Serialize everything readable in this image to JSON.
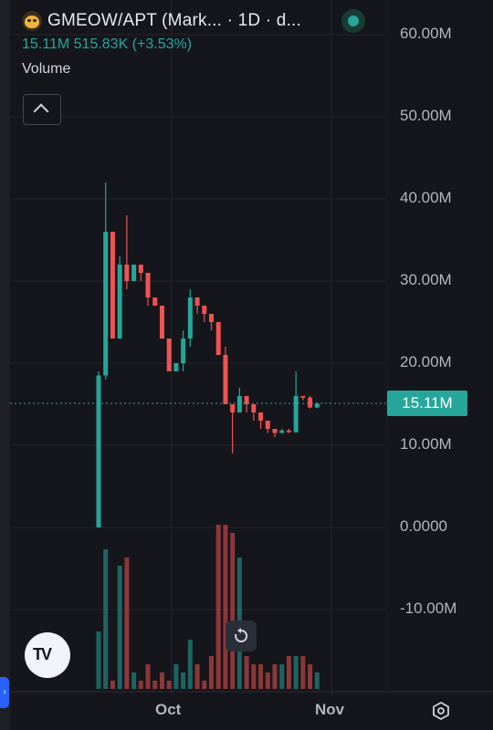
{
  "legend": {
    "symbol": "GMEOW/APT (Mark... · 1D · d...",
    "price": "15.11M",
    "volume": "515.83K",
    "change": "(+3.53%)",
    "indicator": "Volume"
  },
  "price_axis": [
    "60.00M",
    "50.00M",
    "40.00M",
    "30.00M",
    "20.00M",
    "10.00M",
    "0.0000",
    "-10.00M"
  ],
  "last_price_label": "15.11M",
  "time_axis": [
    "Oct",
    "Nov"
  ],
  "colors": {
    "up": "#26a69a",
    "down": "#ef5350",
    "background": "#15161c"
  },
  "chart_data": {
    "type": "candlestick",
    "interval": "1D",
    "ylim": [
      -20,
      60
    ],
    "unit": "M",
    "candles": [
      {
        "o": 0,
        "h": 19,
        "l": 0,
        "c": 18.5
      },
      {
        "o": 18.5,
        "h": 42,
        "l": 18,
        "c": 36
      },
      {
        "o": 36,
        "h": 36,
        "l": 23,
        "c": 23
      },
      {
        "o": 23,
        "h": 33,
        "l": 23,
        "c": 32
      },
      {
        "o": 32,
        "h": 38,
        "l": 29,
        "c": 30
      },
      {
        "o": 30,
        "h": 32,
        "l": 30,
        "c": 32
      },
      {
        "o": 32,
        "h": 32,
        "l": 30,
        "c": 31
      },
      {
        "o": 31,
        "h": 31,
        "l": 27,
        "c": 28
      },
      {
        "o": 28,
        "h": 28,
        "l": 27,
        "c": 27
      },
      {
        "o": 27,
        "h": 27,
        "l": 23,
        "c": 23
      },
      {
        "o": 23,
        "h": 23,
        "l": 19,
        "c": 19
      },
      {
        "o": 19,
        "h": 20,
        "l": 19,
        "c": 20
      },
      {
        "o": 20,
        "h": 24,
        "l": 19,
        "c": 23
      },
      {
        "o": 23,
        "h": 29,
        "l": 22,
        "c": 28
      },
      {
        "o": 28,
        "h": 28,
        "l": 26,
        "c": 27
      },
      {
        "o": 27,
        "h": 27,
        "l": 25,
        "c": 26
      },
      {
        "o": 26,
        "h": 26,
        "l": 24,
        "c": 25
      },
      {
        "o": 25,
        "h": 25,
        "l": 21,
        "c": 21
      },
      {
        "o": 21,
        "h": 22,
        "l": 15,
        "c": 15
      },
      {
        "o": 15,
        "h": 15,
        "l": 9,
        "c": 14
      },
      {
        "o": 14,
        "h": 17,
        "l": 14,
        "c": 16
      },
      {
        "o": 16,
        "h": 16,
        "l": 14,
        "c": 15
      },
      {
        "o": 15,
        "h": 15,
        "l": 13,
        "c": 14
      },
      {
        "o": 14,
        "h": 14,
        "l": 12,
        "c": 13
      },
      {
        "o": 13,
        "h": 13,
        "l": 11.5,
        "c": 12
      },
      {
        "o": 12,
        "h": 12,
        "l": 11,
        "c": 11.5
      },
      {
        "o": 11.5,
        "h": 12,
        "l": 11.5,
        "c": 11.8
      },
      {
        "o": 11.8,
        "h": 12,
        "l": 11.5,
        "c": 11.6
      },
      {
        "o": 11.6,
        "h": 19,
        "l": 11.5,
        "c": 16
      },
      {
        "o": 16,
        "h": 16,
        "l": 15.5,
        "c": 15.8
      },
      {
        "o": 15.8,
        "h": 16,
        "l": 14.5,
        "c": 14.6
      },
      {
        "o": 14.6,
        "h": 15.2,
        "l": 14.5,
        "c": 15.11
      }
    ],
    "volume_max": 20,
    "volume": [
      7,
      17,
      1,
      15,
      16,
      2,
      1,
      3,
      1,
      2,
      1,
      3,
      2,
      6,
      3,
      1,
      4,
      20,
      20,
      19,
      16,
      4,
      3,
      3,
      2,
      3,
      3,
      4,
      4,
      4,
      3,
      2
    ],
    "last_value": 15.11
  }
}
